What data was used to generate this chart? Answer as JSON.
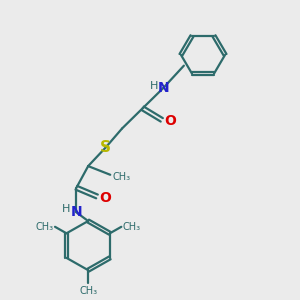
{
  "bg_color": "#ebebeb",
  "bond_color": "#2d6b6b",
  "N_color": "#2222cc",
  "O_color": "#dd0000",
  "S_color": "#b8b800",
  "line_width": 1.6,
  "font_size": 9,
  "fig_size": [
    3.0,
    3.0
  ],
  "dpi": 100,
  "xlim": [
    0,
    10
  ],
  "ylim": [
    0,
    10
  ]
}
